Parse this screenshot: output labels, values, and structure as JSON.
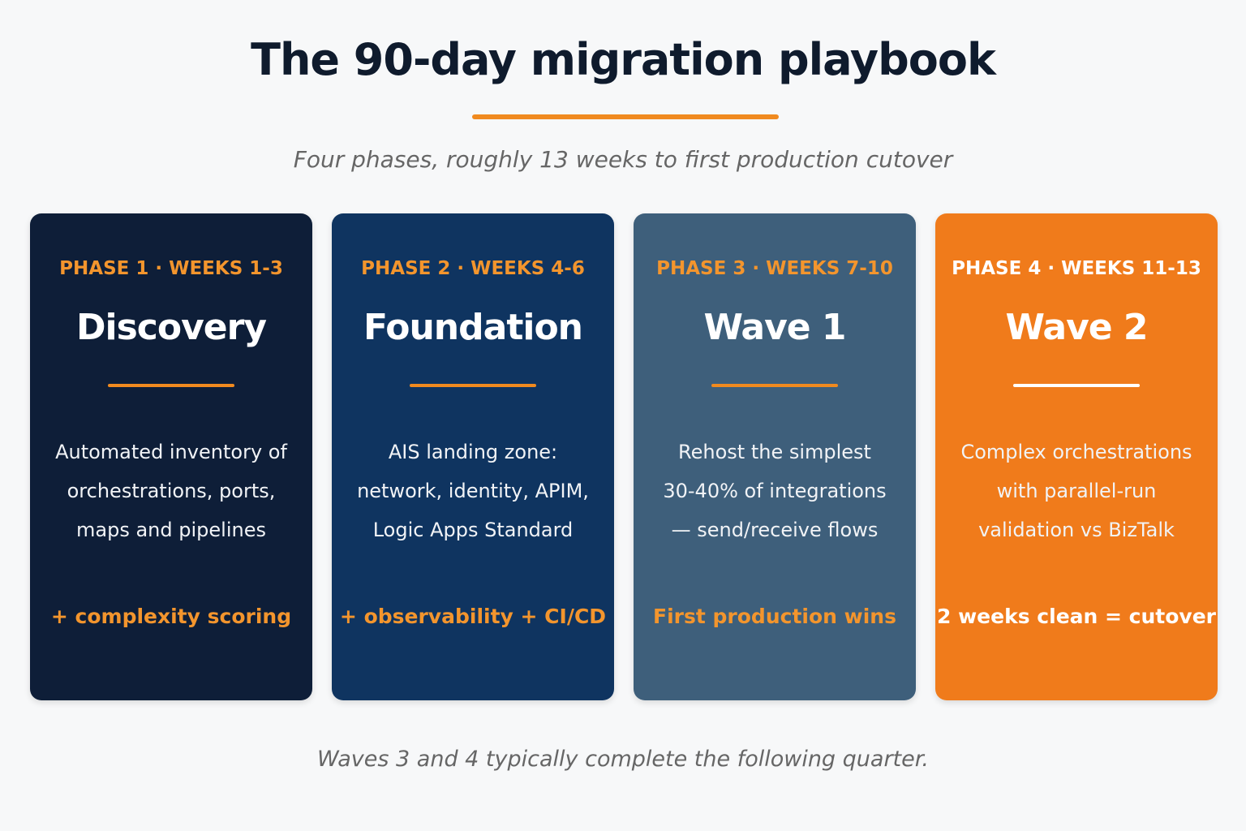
{
  "header": {
    "title": "The 90-day migration playbook",
    "subtitle": "Four phases, roughly 13 weeks to first production cutover"
  },
  "phases": [
    {
      "label": "PHASE 1 · WEEKS 1-3",
      "name": "Discovery",
      "description": [
        "Automated inventory of",
        "orchestrations, ports,",
        "maps and pipelines"
      ],
      "footer": "+ complexity scoring"
    },
    {
      "label": "PHASE 2 · WEEKS 4-6",
      "name": "Foundation",
      "description": [
        "AIS landing zone:",
        "network, identity, APIM,",
        "Logic Apps Standard"
      ],
      "footer": "+ observability + CI/CD"
    },
    {
      "label": "PHASE 3 · WEEKS 7-10",
      "name": "Wave 1",
      "description": [
        "Rehost the simplest",
        "30-40% of integrations",
        "— send/receive flows"
      ],
      "footer": "First production wins"
    },
    {
      "label": "PHASE 4 · WEEKS 11-13",
      "name": "Wave 2",
      "description": [
        "Complex orchestrations",
        "with parallel-run",
        "validation vs BizTalk"
      ],
      "footer": "2 weeks clean = cutover"
    }
  ],
  "footnote": "Waves 3 and 4 typically complete the following quarter."
}
